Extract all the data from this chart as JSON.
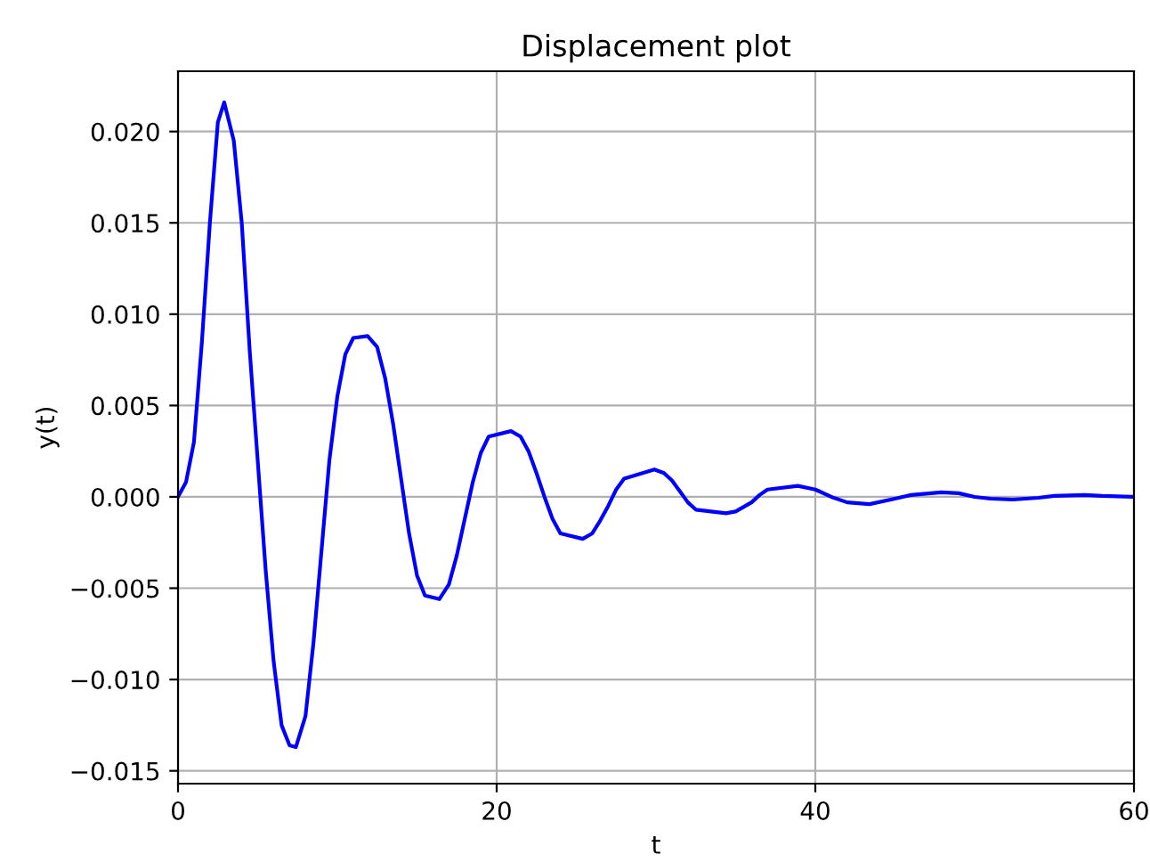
{
  "chart_data": {
    "type": "line",
    "title": "Displacement plot",
    "xlabel": "t",
    "ylabel": "y(t)",
    "xlim": [
      0,
      60
    ],
    "ylim": [
      -0.0157,
      0.0233
    ],
    "xticks": [
      0,
      20,
      40,
      60
    ],
    "yticks": [
      {
        "value": -0.015,
        "label": "−0.015"
      },
      {
        "value": -0.01,
        "label": "−0.010"
      },
      {
        "value": -0.005,
        "label": "−0.005"
      },
      {
        "value": 0,
        "label": "0.000"
      },
      {
        "value": 0.005,
        "label": "0.005"
      },
      {
        "value": 0.01,
        "label": "0.010"
      },
      {
        "value": 0.015,
        "label": "0.015"
      },
      {
        "value": 0.02,
        "label": "0.020"
      }
    ],
    "grid": true,
    "marker": "none",
    "line_style": "solid",
    "series": [
      {
        "color": "#0000ff",
        "x": [
          0,
          0.5,
          1,
          1.5,
          2,
          2.5,
          2.9,
          3.5,
          4,
          4.5,
          5,
          5.5,
          6,
          6.5,
          7,
          7.4,
          8,
          8.5,
          9,
          9.5,
          10,
          10.5,
          11,
          11.9,
          12.5,
          13,
          13.5,
          14,
          14.5,
          15,
          15.5,
          16.4,
          17,
          17.5,
          18,
          18.5,
          19,
          19.5,
          20.9,
          21.5,
          22,
          22.5,
          23,
          23.5,
          24,
          25.4,
          26,
          26.5,
          27,
          27.5,
          28,
          29.9,
          30.5,
          31,
          31.5,
          32,
          32.5,
          34.4,
          35,
          36,
          36.5,
          37,
          38.9,
          40,
          41,
          42,
          43.4,
          45,
          46,
          47.9,
          49,
          50,
          51,
          52.4,
          54,
          55,
          56.9,
          58,
          60
        ],
        "values": [
          0,
          0.0008,
          0.003,
          0.0085,
          0.015,
          0.0205,
          0.0216,
          0.0195,
          0.015,
          0.008,
          0.002,
          -0.004,
          -0.009,
          -0.0125,
          -0.0136,
          -0.0137,
          -0.012,
          -0.008,
          -0.003,
          0.002,
          0.0055,
          0.0078,
          0.0087,
          0.0088,
          0.0082,
          0.0065,
          0.004,
          0.001,
          -0.002,
          -0.0043,
          -0.0054,
          -0.0056,
          -0.0048,
          -0.0032,
          -0.0012,
          0.0008,
          0.0024,
          0.0033,
          0.0036,
          0.0033,
          0.0025,
          0.0013,
          0,
          -0.0012,
          -0.002,
          -0.0023,
          -0.002,
          -0.0013,
          -0.0005,
          0.0004,
          0.001,
          0.0015,
          0.0013,
          0.0009,
          0.0003,
          -0.0003,
          -0.0007,
          -0.0009,
          -0.0008,
          -0.0003,
          0.0001,
          0.0004,
          0.0006,
          0.0004,
          0,
          -0.0003,
          -0.0004,
          -0.0001,
          0.0001,
          0.00025,
          0.0002,
          0,
          -0.0001,
          -0.00015,
          -5e-05,
          5e-05,
          0.0001,
          5e-05,
          0
        ]
      }
    ]
  }
}
